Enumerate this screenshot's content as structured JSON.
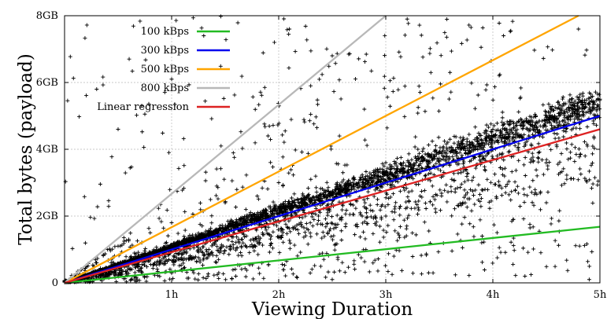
{
  "chart_data": {
    "type": "scatter",
    "title": "",
    "xlabel": "Viewing Duration",
    "ylabel": "Total bytes (payload)",
    "x_unit": "hours",
    "y_unit": "GB",
    "xlim": [
      0,
      5
    ],
    "ylim": [
      0,
      8
    ],
    "x_ticks": [
      {
        "value": 1,
        "label": "1h"
      },
      {
        "value": 2,
        "label": "2h"
      },
      {
        "value": 3,
        "label": "3h"
      },
      {
        "value": 4,
        "label": "4h"
      },
      {
        "value": 5,
        "label": "5h"
      }
    ],
    "y_ticks": [
      {
        "value": 0,
        "label": "0"
      },
      {
        "value": 2,
        "label": "2GB"
      },
      {
        "value": 4,
        "label": "4GB"
      },
      {
        "value": 6,
        "label": "6GB"
      },
      {
        "value": 8,
        "label": "8GB"
      }
    ],
    "grid": true,
    "legend_position": "top-left",
    "scatter": {
      "marker": "+",
      "color": "#000000",
      "description_points": "dense cloud of sessions: viewing duration (h) vs total bytes (GB)",
      "sample_points": [
        [
          0.1,
          0.2
        ],
        [
          0.2,
          0.5
        ],
        [
          0.3,
          0.6
        ],
        [
          0.4,
          1.0
        ],
        [
          0.5,
          1.1
        ],
        [
          0.6,
          1.3
        ],
        [
          0.8,
          1.5
        ],
        [
          1.0,
          1.8
        ],
        [
          1.2,
          2.0
        ],
        [
          1.5,
          2.4
        ],
        [
          1.8,
          2.6
        ],
        [
          2.0,
          3.0
        ],
        [
          2.3,
          3.1
        ],
        [
          2.6,
          3.3
        ],
        [
          3.0,
          3.6
        ],
        [
          3.3,
          4.0
        ],
        [
          3.6,
          4.3
        ],
        [
          4.0,
          4.6
        ],
        [
          4.4,
          5.0
        ],
        [
          4.8,
          5.4
        ],
        [
          5.0,
          5.5
        ],
        [
          0.3,
          5.8
        ],
        [
          0.5,
          4.6
        ],
        [
          1.0,
          6.1
        ],
        [
          1.3,
          7.4
        ],
        [
          2.1,
          7.6
        ],
        [
          2.5,
          6.8
        ],
        [
          3.2,
          7.9
        ],
        [
          4.1,
          7.4
        ],
        [
          4.8,
          7.6
        ],
        [
          1.9,
          4.4
        ],
        [
          2.8,
          5.2
        ],
        [
          3.6,
          6.3
        ],
        [
          1.6,
          0.2
        ],
        [
          2.5,
          0.1
        ],
        [
          3.4,
          0.3
        ],
        [
          4.3,
          0.2
        ],
        [
          4.9,
          0.1
        ],
        [
          3.9,
          1.4
        ],
        [
          4.5,
          2.4
        ],
        [
          2.9,
          2.0
        ]
      ]
    },
    "series": [
      {
        "name": "100 kBps",
        "color": "#22bb22",
        "rate_kBps": 100,
        "x": [
          0,
          5
        ],
        "y": [
          0,
          1.68
        ]
      },
      {
        "name": "300 kBps",
        "color": "#0000ee",
        "rate_kBps": 300,
        "x": [
          0,
          5
        ],
        "y": [
          0,
          5.0
        ]
      },
      {
        "name": "500 kBps",
        "color": "#ffa500",
        "rate_kBps": 500,
        "x": [
          0,
          4.8
        ],
        "y": [
          0,
          8.0
        ]
      },
      {
        "name": "800 kBps",
        "color": "#b8b8b8",
        "rate_kBps": 800,
        "x": [
          0,
          3.0
        ],
        "y": [
          0,
          8.0
        ]
      },
      {
        "name": "Linear regression",
        "color": "#dd2222",
        "x": [
          0,
          5
        ],
        "y": [
          0,
          4.6
        ]
      }
    ]
  }
}
